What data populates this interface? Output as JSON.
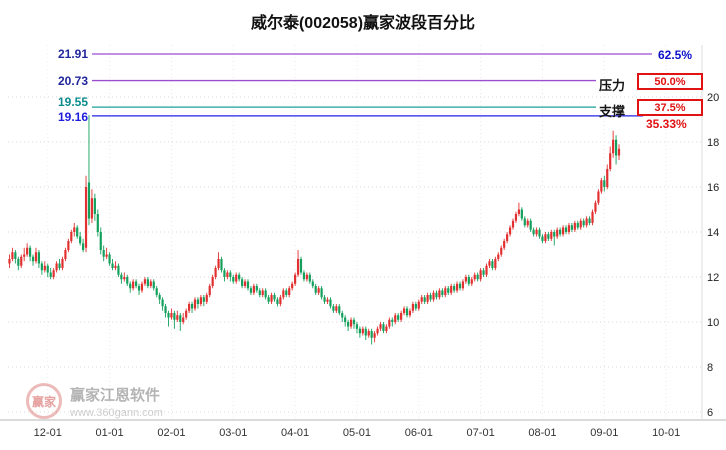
{
  "watermark": {
    "logo": "赢家",
    "brand": "赢家江恩软件",
    "url": "www.360gann.com"
  },
  "chart_data": {
    "type": "candlestick",
    "title": "威尔泰(002058)赢家波段百分比",
    "symbol": "威尔泰",
    "code": "002058",
    "up_color": "#e23030",
    "down_color": "#13a05c",
    "grid": true,
    "ylim": [
      6,
      20
    ],
    "y_ticks": [
      20,
      18,
      16,
      14,
      12,
      10,
      8,
      6
    ],
    "x_tick_labels": [
      "12-01",
      "01-01",
      "02-01",
      "03-01",
      "04-01",
      "05-01",
      "06-01",
      "07-01",
      "08-01",
      "09-01",
      "10-01"
    ],
    "x_tick_slots": [
      13,
      34,
      55,
      76,
      97,
      118,
      139,
      160,
      181,
      202,
      223
    ],
    "total_slots": 235,
    "levels": [
      {
        "price": 21.91,
        "pct": "62.5%",
        "color": "#9a4fd0"
      },
      {
        "price": 20.73,
        "pct": "50.0%",
        "label": "压力",
        "color": "#9a4fd0"
      },
      {
        "price": 19.55,
        "pct": "37.5%",
        "label": "支撑",
        "color": "#18a09a"
      },
      {
        "price": 19.16,
        "pct": "35.33%",
        "color": "#2222e8"
      }
    ],
    "candles": [
      [
        12.6,
        13.0,
        12.4,
        12.8
      ],
      [
        12.8,
        13.3,
        12.7,
        13.1
      ],
      [
        13.1,
        13.2,
        12.6,
        12.8
      ],
      [
        12.8,
        12.9,
        12.3,
        12.5
      ],
      [
        12.5,
        13.0,
        12.4,
        12.9
      ],
      [
        12.9,
        13.3,
        12.7,
        13.0
      ],
      [
        13.0,
        13.5,
        12.9,
        13.3
      ],
      [
        13.3,
        13.4,
        12.7,
        12.9
      ],
      [
        12.9,
        13.0,
        12.5,
        12.7
      ],
      [
        12.7,
        13.3,
        12.6,
        13.1
      ],
      [
        13.1,
        13.2,
        12.4,
        12.6
      ],
      [
        12.6,
        12.7,
        12.1,
        12.3
      ],
      [
        12.3,
        12.7,
        12.2,
        12.5
      ],
      [
        12.5,
        12.6,
        12.0,
        12.2
      ],
      [
        12.2,
        12.4,
        11.9,
        12.0
      ],
      [
        12.0,
        12.4,
        11.9,
        12.3
      ],
      [
        12.3,
        12.7,
        12.2,
        12.6
      ],
      [
        12.6,
        12.8,
        12.3,
        12.4
      ],
      [
        12.4,
        12.9,
        12.3,
        12.8
      ],
      [
        12.8,
        13.3,
        12.7,
        13.2
      ],
      [
        13.2,
        13.7,
        13.1,
        13.6
      ],
      [
        13.6,
        14.1,
        13.5,
        14.0
      ],
      [
        14.0,
        14.4,
        13.8,
        14.2
      ],
      [
        14.2,
        14.3,
        13.7,
        13.8
      ],
      [
        13.8,
        14.0,
        13.4,
        13.5
      ],
      [
        13.5,
        13.7,
        13.1,
        13.2
      ],
      [
        13.3,
        16.5,
        13.1,
        16.0
      ],
      [
        16.2,
        19.2,
        14.3,
        14.6
      ],
      [
        14.6,
        15.9,
        14.4,
        15.5
      ],
      [
        15.5,
        15.7,
        14.5,
        14.8
      ],
      [
        14.8,
        15.0,
        13.8,
        14.0
      ],
      [
        14.0,
        14.2,
        13.0,
        13.2
      ],
      [
        13.2,
        13.4,
        12.7,
        12.9
      ],
      [
        12.9,
        13.3,
        12.8,
        13.0
      ],
      [
        13.0,
        13.1,
        12.5,
        12.6
      ],
      [
        12.6,
        12.8,
        12.3,
        12.4
      ],
      [
        12.4,
        12.7,
        12.3,
        12.5
      ],
      [
        12.5,
        12.6,
        12.0,
        12.1
      ],
      [
        12.1,
        12.2,
        11.7,
        11.9
      ],
      [
        11.9,
        12.2,
        11.8,
        12.0
      ],
      [
        12.0,
        12.1,
        11.6,
        11.7
      ],
      [
        11.7,
        11.8,
        11.3,
        11.5
      ],
      [
        11.5,
        11.9,
        11.4,
        11.8
      ],
      [
        11.8,
        11.9,
        11.5,
        11.6
      ],
      [
        11.6,
        11.7,
        11.2,
        11.4
      ],
      [
        11.4,
        11.8,
        11.3,
        11.7
      ],
      [
        11.7,
        12.0,
        11.6,
        11.9
      ],
      [
        11.9,
        12.0,
        11.5,
        11.6
      ],
      [
        11.6,
        11.9,
        11.5,
        11.8
      ],
      [
        11.8,
        11.9,
        11.4,
        11.5
      ],
      [
        11.5,
        11.6,
        11.1,
        11.2
      ],
      [
        11.2,
        11.3,
        10.8,
        11.0
      ],
      [
        11.0,
        11.1,
        10.5,
        10.7
      ],
      [
        10.7,
        10.8,
        10.2,
        10.4
      ],
      [
        10.4,
        10.5,
        9.8,
        10.2
      ],
      [
        10.2,
        10.6,
        10.1,
        10.4
      ],
      [
        10.4,
        10.5,
        9.7,
        10.1
      ],
      [
        10.1,
        10.5,
        10.0,
        10.3
      ],
      [
        10.3,
        10.4,
        9.6,
        10.0
      ],
      [
        10.0,
        10.4,
        9.9,
        10.2
      ],
      [
        10.2,
        10.6,
        10.1,
        10.5
      ],
      [
        10.5,
        10.9,
        10.4,
        10.8
      ],
      [
        10.8,
        10.9,
        10.4,
        10.6
      ],
      [
        10.6,
        11.1,
        10.5,
        11.0
      ],
      [
        11.0,
        11.1,
        10.6,
        10.8
      ],
      [
        10.8,
        11.2,
        10.7,
        11.1
      ],
      [
        11.1,
        11.2,
        10.7,
        10.9
      ],
      [
        10.9,
        11.3,
        10.8,
        11.2
      ],
      [
        11.2,
        11.7,
        11.1,
        11.6
      ],
      [
        11.6,
        12.1,
        11.5,
        12.0
      ],
      [
        12.0,
        12.5,
        11.9,
        12.4
      ],
      [
        12.4,
        13.1,
        12.3,
        12.8
      ],
      [
        12.8,
        12.9,
        12.2,
        12.3
      ],
      [
        12.3,
        12.4,
        11.8,
        12.0
      ],
      [
        12.0,
        12.3,
        11.9,
        12.2
      ],
      [
        12.2,
        12.3,
        11.8,
        12.0
      ],
      [
        12.0,
        12.1,
        11.7,
        11.8
      ],
      [
        11.8,
        12.2,
        11.7,
        12.1
      ],
      [
        12.1,
        12.2,
        11.8,
        11.9
      ],
      [
        11.9,
        12.0,
        11.5,
        11.6
      ],
      [
        11.6,
        11.9,
        11.5,
        11.8
      ],
      [
        11.8,
        11.9,
        11.4,
        11.5
      ],
      [
        11.5,
        11.6,
        11.2,
        11.3
      ],
      [
        11.3,
        11.7,
        11.2,
        11.6
      ],
      [
        11.6,
        11.7,
        11.3,
        11.4
      ],
      [
        11.4,
        11.5,
        11.1,
        11.2
      ],
      [
        11.2,
        11.5,
        11.1,
        11.4
      ],
      [
        11.4,
        11.5,
        11.0,
        11.1
      ],
      [
        11.1,
        11.2,
        10.8,
        10.9
      ],
      [
        10.9,
        11.3,
        10.8,
        11.2
      ],
      [
        11.2,
        11.3,
        10.9,
        11.0
      ],
      [
        11.0,
        11.1,
        10.7,
        10.8
      ],
      [
        10.8,
        11.2,
        10.7,
        11.1
      ],
      [
        11.1,
        11.5,
        11.0,
        11.4
      ],
      [
        11.4,
        11.5,
        11.1,
        11.2
      ],
      [
        11.2,
        11.6,
        11.1,
        11.5
      ],
      [
        11.5,
        11.8,
        11.4,
        11.7
      ],
      [
        11.7,
        12.2,
        11.6,
        12.1
      ],
      [
        12.1,
        13.2,
        12.0,
        12.8
      ],
      [
        12.8,
        12.9,
        12.1,
        12.2
      ],
      [
        12.2,
        12.3,
        11.8,
        11.9
      ],
      [
        11.9,
        12.2,
        11.8,
        12.1
      ],
      [
        12.1,
        12.2,
        11.7,
        11.8
      ],
      [
        11.8,
        11.9,
        11.5,
        11.6
      ],
      [
        11.6,
        11.7,
        11.2,
        11.3
      ],
      [
        11.3,
        11.6,
        11.2,
        11.5
      ],
      [
        11.5,
        11.6,
        11.0,
        11.1
      ],
      [
        11.1,
        11.2,
        10.8,
        10.9
      ],
      [
        10.9,
        11.1,
        10.8,
        11.0
      ],
      [
        11.0,
        11.1,
        10.6,
        10.7
      ],
      [
        10.7,
        10.8,
        10.4,
        10.5
      ],
      [
        10.5,
        10.8,
        10.4,
        10.7
      ],
      [
        10.7,
        10.8,
        10.3,
        10.4
      ],
      [
        10.4,
        10.5,
        10.0,
        10.2
      ],
      [
        10.2,
        10.3,
        9.8,
        10.0
      ],
      [
        10.0,
        10.1,
        9.6,
        9.8
      ],
      [
        9.8,
        10.2,
        9.7,
        10.1
      ],
      [
        10.1,
        10.2,
        9.7,
        9.9
      ],
      [
        9.9,
        10.0,
        9.5,
        9.7
      ],
      [
        9.7,
        9.8,
        9.3,
        9.5
      ],
      [
        9.5,
        9.8,
        9.4,
        9.7
      ],
      [
        9.7,
        9.8,
        9.2,
        9.4
      ],
      [
        9.4,
        9.7,
        9.3,
        9.6
      ],
      [
        9.6,
        9.7,
        9.0,
        9.3
      ],
      [
        9.3,
        9.6,
        9.1,
        9.5
      ],
      [
        9.5,
        9.8,
        9.4,
        9.7
      ],
      [
        9.7,
        10.0,
        9.6,
        9.9
      ],
      [
        9.9,
        10.0,
        9.5,
        9.6
      ],
      [
        9.6,
        9.9,
        9.5,
        9.8
      ],
      [
        9.8,
        10.2,
        9.7,
        10.1
      ],
      [
        10.1,
        10.2,
        9.8,
        10.0
      ],
      [
        10.0,
        10.4,
        9.9,
        10.3
      ],
      [
        10.3,
        10.4,
        10.0,
        10.1
      ],
      [
        10.1,
        10.5,
        10.0,
        10.4
      ],
      [
        10.4,
        10.7,
        10.3,
        10.6
      ],
      [
        10.6,
        10.7,
        10.2,
        10.3
      ],
      [
        10.3,
        10.6,
        10.2,
        10.5
      ],
      [
        10.5,
        10.9,
        10.4,
        10.8
      ],
      [
        10.8,
        10.9,
        10.5,
        10.6
      ],
      [
        10.6,
        11.0,
        10.5,
        10.9
      ],
      [
        10.9,
        11.2,
        10.8,
        11.1
      ],
      [
        11.1,
        11.2,
        10.8,
        10.9
      ],
      [
        10.9,
        11.3,
        10.8,
        11.2
      ],
      [
        11.2,
        11.3,
        10.9,
        11.0
      ],
      [
        11.0,
        11.4,
        10.9,
        11.3
      ],
      [
        11.3,
        11.4,
        11.0,
        11.1
      ],
      [
        11.1,
        11.5,
        11.0,
        11.4
      ],
      [
        11.4,
        11.5,
        11.1,
        11.2
      ],
      [
        11.2,
        11.6,
        11.1,
        11.5
      ],
      [
        11.5,
        11.6,
        11.2,
        11.3
      ],
      [
        11.3,
        11.7,
        11.2,
        11.6
      ],
      [
        11.6,
        11.7,
        11.3,
        11.4
      ],
      [
        11.4,
        11.8,
        11.3,
        11.7
      ],
      [
        11.7,
        11.8,
        11.4,
        11.5
      ],
      [
        11.5,
        11.9,
        11.4,
        11.8
      ],
      [
        11.8,
        12.1,
        11.7,
        12.0
      ],
      [
        12.0,
        12.1,
        11.6,
        11.7
      ],
      [
        11.7,
        12.0,
        11.6,
        11.9
      ],
      [
        11.9,
        12.2,
        11.8,
        12.1
      ],
      [
        12.1,
        12.2,
        11.8,
        11.9
      ],
      [
        11.9,
        12.4,
        11.8,
        12.3
      ],
      [
        12.3,
        12.4,
        12.0,
        12.1
      ],
      [
        12.1,
        12.6,
        12.0,
        12.5
      ],
      [
        12.5,
        12.8,
        12.4,
        12.7
      ],
      [
        12.7,
        12.8,
        12.3,
        12.4
      ],
      [
        12.4,
        12.9,
        12.3,
        12.8
      ],
      [
        12.8,
        13.1,
        12.7,
        13.0
      ],
      [
        13.0,
        13.4,
        12.9,
        13.3
      ],
      [
        13.3,
        13.7,
        13.2,
        13.6
      ],
      [
        13.6,
        14.0,
        13.5,
        13.9
      ],
      [
        13.9,
        14.3,
        13.8,
        14.2
      ],
      [
        14.2,
        14.6,
        14.1,
        14.5
      ],
      [
        14.5,
        14.9,
        14.4,
        14.8
      ],
      [
        14.8,
        15.3,
        14.7,
        15.0
      ],
      [
        15.0,
        15.1,
        14.5,
        14.6
      ],
      [
        14.6,
        14.7,
        14.2,
        14.3
      ],
      [
        14.3,
        14.6,
        14.2,
        14.5
      ],
      [
        14.5,
        14.6,
        14.0,
        14.1
      ],
      [
        14.1,
        14.2,
        13.8,
        13.9
      ],
      [
        13.9,
        14.2,
        13.8,
        14.1
      ],
      [
        14.1,
        14.2,
        13.7,
        13.8
      ],
      [
        13.8,
        13.9,
        13.5,
        13.6
      ],
      [
        13.6,
        14.0,
        13.5,
        13.9
      ],
      [
        13.9,
        14.0,
        13.6,
        13.7
      ],
      [
        13.7,
        14.1,
        13.6,
        14.0
      ],
      [
        14.0,
        14.1,
        13.4,
        13.8
      ],
      [
        13.8,
        14.2,
        13.7,
        14.1
      ],
      [
        14.1,
        14.2,
        13.8,
        13.9
      ],
      [
        13.9,
        14.3,
        13.8,
        14.2
      ],
      [
        14.2,
        14.3,
        13.9,
        14.0
      ],
      [
        14.0,
        14.4,
        13.9,
        14.3
      ],
      [
        14.3,
        14.4,
        14.0,
        14.1
      ],
      [
        14.1,
        14.5,
        14.0,
        14.4
      ],
      [
        14.4,
        14.5,
        14.1,
        14.2
      ],
      [
        14.2,
        14.6,
        14.1,
        14.5
      ],
      [
        14.5,
        14.6,
        14.2,
        14.3
      ],
      [
        14.3,
        14.7,
        14.2,
        14.6
      ],
      [
        14.6,
        14.7,
        14.3,
        14.4
      ],
      [
        14.4,
        15.0,
        14.3,
        14.9
      ],
      [
        14.9,
        15.4,
        14.8,
        15.3
      ],
      [
        15.3,
        15.9,
        15.2,
        15.8
      ],
      [
        15.8,
        16.4,
        15.7,
        16.3
      ],
      [
        16.3,
        16.5,
        15.8,
        16.0
      ],
      [
        16.0,
        17.0,
        15.9,
        16.8
      ],
      [
        16.8,
        17.8,
        16.7,
        17.5
      ],
      [
        17.5,
        18.5,
        17.3,
        18.1
      ],
      [
        18.1,
        18.3,
        17.0,
        17.4
      ],
      [
        17.4,
        17.9,
        17.2,
        17.7
      ]
    ]
  }
}
